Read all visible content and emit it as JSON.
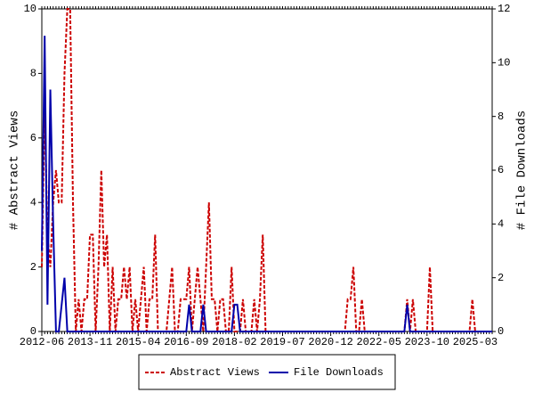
{
  "chart_data": {
    "type": "line",
    "y_label": "# Abstract Views",
    "y2_label": "# File Downloads",
    "categories": [
      "2012-06",
      null,
      null,
      null,
      null,
      null,
      null,
      null,
      null,
      null,
      null,
      null,
      null,
      null,
      null,
      null,
      null,
      "2013-11",
      null,
      null,
      null,
      null,
      null,
      null,
      null,
      null,
      null,
      null,
      null,
      null,
      null,
      null,
      null,
      null,
      "2015-04",
      null,
      null,
      null,
      null,
      null,
      null,
      null,
      null,
      null,
      null,
      null,
      null,
      null,
      null,
      null,
      null,
      "2016-09",
      null,
      null,
      null,
      null,
      null,
      null,
      null,
      null,
      null,
      null,
      null,
      null,
      null,
      null,
      null,
      null,
      "2018-02",
      null,
      null,
      null,
      null,
      null,
      null,
      null,
      null,
      null,
      null,
      null,
      null,
      null,
      null,
      null,
      null,
      "2019-07",
      null,
      null,
      null,
      null,
      null,
      null,
      null,
      null,
      null,
      null,
      null,
      null,
      null,
      null,
      null,
      null,
      "2020-12",
      null,
      null,
      null,
      null,
      null,
      null,
      null,
      null,
      null,
      null,
      null,
      null,
      null,
      null,
      null,
      null,
      "2022-05",
      null,
      null,
      null,
      null,
      null,
      null,
      null,
      null,
      null,
      null,
      null,
      null,
      null,
      null,
      null,
      null,
      "2023-10",
      null,
      null,
      null,
      null,
      null,
      null,
      null,
      null,
      null,
      null,
      null,
      null,
      null,
      null,
      null,
      null,
      "2025-03",
      null,
      null,
      null,
      null,
      null,
      null
    ],
    "series": [
      {
        "name": "Abstract Views",
        "color": "#cc0000",
        "dash": true,
        "values": [
          2,
          7,
          3,
          2,
          4,
          5,
          4,
          4,
          8,
          10,
          10,
          4,
          0,
          1,
          0,
          1,
          1,
          3,
          3,
          0,
          2,
          5,
          2,
          3,
          0,
          2,
          0,
          1,
          1,
          2,
          1,
          2,
          0,
          1,
          0,
          1,
          2,
          0,
          1,
          1,
          3,
          0,
          0,
          0,
          0,
          1,
          2,
          0,
          0,
          1,
          1,
          1,
          2,
          0,
          1,
          2,
          1,
          0,
          2,
          4,
          1,
          1,
          0,
          1,
          1,
          0,
          0,
          2,
          0,
          0,
          0,
          1,
          0,
          0,
          0,
          1,
          0,
          1,
          3,
          0,
          0,
          0,
          0,
          0,
          0,
          0,
          0,
          0,
          0,
          0,
          0,
          0,
          0,
          0,
          0,
          0,
          0,
          0,
          0,
          0,
          0,
          0,
          0,
          0,
          0,
          0,
          0,
          0,
          1,
          1,
          2,
          0,
          0,
          1,
          0,
          0,
          0,
          0,
          0,
          0,
          0,
          0,
          0,
          0,
          0,
          0,
          0,
          0,
          0,
          1,
          0,
          1,
          0,
          0,
          0,
          0,
          0,
          2,
          0,
          0,
          0,
          0,
          0,
          0,
          0,
          0,
          0,
          0,
          0,
          0,
          0,
          0,
          1,
          0,
          0,
          0,
          0,
          0,
          0,
          0
        ]
      },
      {
        "name": "File Downloads",
        "color": "#0000aa",
        "dash": false,
        "axis": "y2",
        "values": [
          3,
          11,
          1,
          9,
          4,
          0,
          0,
          1,
          2,
          0,
          0,
          0,
          0,
          0,
          0,
          0,
          0,
          0,
          0,
          0,
          0,
          0,
          0,
          0,
          0,
          0,
          0,
          0,
          0,
          0,
          0,
          0,
          0,
          0,
          0,
          0,
          0,
          0,
          0,
          0,
          0,
          0,
          0,
          0,
          0,
          0,
          0,
          0,
          0,
          0,
          0,
          0,
          1,
          0,
          0,
          0,
          0,
          1,
          0,
          0,
          0,
          0,
          0,
          0,
          0,
          0,
          0,
          0,
          1,
          1,
          0,
          0,
          0,
          0,
          0,
          0,
          0,
          0,
          0,
          0,
          0,
          0,
          0,
          0,
          0,
          0,
          0,
          0,
          0,
          0,
          0,
          0,
          0,
          0,
          0,
          0,
          0,
          0,
          0,
          0,
          0,
          0,
          0,
          0,
          0,
          0,
          0,
          0,
          0,
          0,
          0,
          0,
          0,
          0,
          0,
          0,
          0,
          0,
          0,
          0,
          0,
          0,
          0,
          0,
          0,
          0,
          0,
          0,
          0,
          1,
          0,
          0,
          0,
          0,
          0,
          0,
          0,
          0,
          0,
          0,
          0,
          0,
          0,
          0,
          0,
          0,
          0,
          0,
          0,
          0,
          0,
          0,
          0,
          0,
          0,
          0,
          0,
          0,
          0,
          0
        ]
      }
    ],
    "ylim": [
      0,
      10
    ],
    "yticks": [
      0,
      2,
      4,
      6,
      8,
      10
    ],
    "y2lim": [
      0,
      12
    ],
    "y2ticks": [
      0,
      2,
      4,
      6,
      8,
      10,
      12
    ],
    "legend": "bottom"
  }
}
